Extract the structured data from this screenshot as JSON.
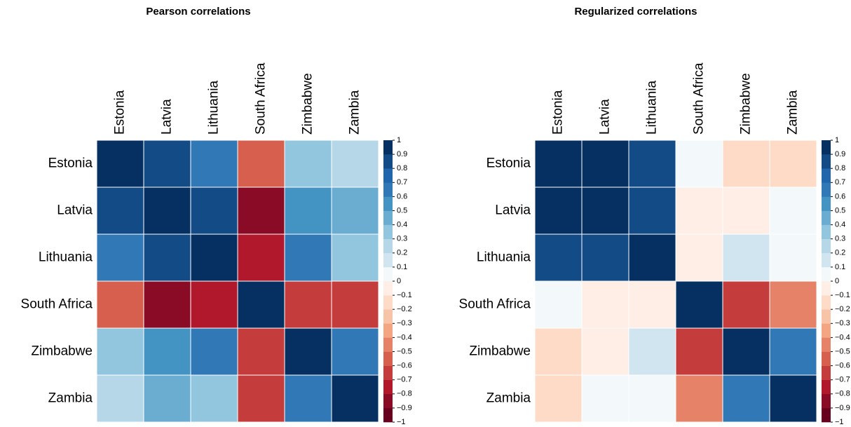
{
  "chart_data": [
    {
      "type": "heatmap",
      "title": "Pearson correlations",
      "categories": [
        "Estonia",
        "Latvia",
        "Lithuania",
        "South Africa",
        "Zimbabwe",
        "Zambia"
      ],
      "values": [
        [
          1,
          0.85,
          0.65,
          -0.55,
          0.35,
          0.25
        ],
        [
          0.85,
          1,
          0.85,
          -0.85,
          0.55,
          0.45
        ],
        [
          0.65,
          0.85,
          1,
          -0.75,
          0.65,
          0.38
        ],
        [
          -0.55,
          -0.85,
          -0.75,
          1,
          -0.65,
          -0.65
        ],
        [
          0.35,
          0.55,
          0.65,
          -0.65,
          1,
          0.65
        ],
        [
          0.25,
          0.45,
          0.38,
          -0.65,
          0.65,
          1
        ]
      ],
      "clim": [
        -1,
        1
      ],
      "colors": [
        "#67001F",
        "#8A0B25",
        "#B2182B",
        "#C43C3C",
        "#D6604D",
        "#E58267",
        "#F4A582",
        "#F8C4A8",
        "#FDDBC7",
        "#FEEEE5",
        "#F3F8FB",
        "#D1E5F0",
        "#B6D7E8",
        "#92C5DE",
        "#6BACD1",
        "#4393C3",
        "#3079B6",
        "#2166AC",
        "#134B87",
        "#053061"
      ],
      "cticks": [
        1,
        0.9,
        0.8,
        0.7,
        0.6,
        0.5,
        0.4,
        0.3,
        0.2,
        0.1,
        0,
        {
          "value": -0.1,
          "label": "−0.1"
        },
        {
          "value": -0.2,
          "label": "−0.2"
        },
        {
          "value": -0.3,
          "label": "−0.3"
        },
        {
          "value": -0.4,
          "label": "−0.4"
        },
        {
          "value": -0.5,
          "label": "−0.5"
        },
        {
          "value": -0.6,
          "label": "−0.6"
        },
        {
          "value": -0.7,
          "label": "−0.7"
        },
        {
          "value": -0.8,
          "label": "−0.8"
        },
        {
          "value": -0.9,
          "label": "−0.9"
        },
        {
          "value": -1,
          "label": "−1"
        }
      ]
    },
    {
      "type": "heatmap",
      "title": "Regularized correlations",
      "categories": [
        "Estonia",
        "Latvia",
        "Lithuania",
        "South Africa",
        "Zimbabwe",
        "Zambia"
      ],
      "values": [
        [
          1,
          0.95,
          0.85,
          0.05,
          -0.15,
          -0.15
        ],
        [
          0.95,
          1,
          0.85,
          -0.05,
          -0.05,
          0.05
        ],
        [
          0.85,
          0.85,
          1,
          -0.05,
          0.15,
          0.05
        ],
        [
          0.05,
          -0.05,
          -0.05,
          1,
          -0.65,
          -0.45
        ],
        [
          -0.15,
          -0.05,
          0.15,
          -0.65,
          1,
          0.65
        ],
        [
          -0.15,
          0.05,
          0.05,
          -0.45,
          0.65,
          1
        ]
      ],
      "clim": [
        -1,
        1
      ],
      "colors": [
        "#67001F",
        "#8A0B25",
        "#B2182B",
        "#C43C3C",
        "#D6604D",
        "#E58267",
        "#F4A582",
        "#F8C4A8",
        "#FDDBC7",
        "#FEEEE5",
        "#F3F8FB",
        "#D1E5F0",
        "#B6D7E8",
        "#92C5DE",
        "#6BACD1",
        "#4393C3",
        "#3079B6",
        "#2166AC",
        "#134B87",
        "#053061"
      ],
      "cticks": [
        1,
        0.9,
        0.8,
        0.7,
        0.6,
        0.5,
        0.4,
        0.3,
        0.2,
        0.1,
        0,
        {
          "value": -0.1,
          "label": "−0.1"
        },
        {
          "value": -0.2,
          "label": "−0.2"
        },
        {
          "value": -0.3,
          "label": "−0.3"
        },
        {
          "value": -0.4,
          "label": "−0.4"
        },
        {
          "value": -0.5,
          "label": "−0.5"
        },
        {
          "value": -0.6,
          "label": "−0.6"
        },
        {
          "value": -0.7,
          "label": "−0.7"
        },
        {
          "value": -0.8,
          "label": "−0.8"
        },
        {
          "value": -0.9,
          "label": "−0.9"
        },
        {
          "value": -1,
          "label": "−1"
        }
      ]
    }
  ]
}
